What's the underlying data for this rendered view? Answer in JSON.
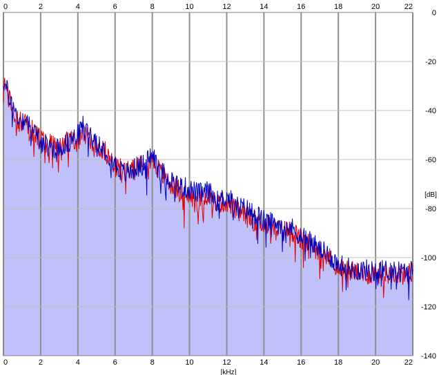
{
  "chart_data": {
    "type": "area",
    "title": "",
    "xlabel": "[kHz]",
    "ylabel": "[dB]",
    "xlim": [
      0,
      22
    ],
    "ylim": [
      -140,
      0
    ],
    "x_ticks": [
      0,
      2,
      4,
      6,
      8,
      10,
      12,
      14,
      16,
      18,
      20,
      22
    ],
    "y_ticks": [
      0,
      -20,
      -40,
      -60,
      -80,
      -100,
      -120,
      -140
    ],
    "x_tick_labels_top": [
      "0",
      "2",
      "4",
      "6",
      "8",
      "10",
      "12",
      "14",
      "16",
      "18",
      "20",
      "22"
    ],
    "x_tick_labels_bottom": [
      "0",
      "2",
      "4",
      "6",
      "8",
      "10",
      "12",
      "14",
      "16",
      "18",
      "20",
      "22"
    ],
    "y_tick_labels": [
      "0",
      "-20",
      "-40",
      "-60",
      "-80",
      "-100",
      "-120",
      "-140"
    ],
    "grid": true,
    "fill_color": "#c0c0fa",
    "series": [
      {
        "color": "#0000c0",
        "x": [
          0,
          0.25,
          0.5,
          0.75,
          1,
          1.25,
          1.5,
          1.75,
          2,
          2.5,
          3,
          3.5,
          4,
          4.25,
          4.5,
          5,
          5.5,
          6,
          6.5,
          7,
          7.5,
          8,
          8.5,
          9,
          9.5,
          10,
          10.5,
          11,
          11.5,
          12,
          12.5,
          13,
          13.5,
          14,
          14.5,
          15,
          15.5,
          16,
          16.5,
          17,
          17.5,
          18,
          18.5,
          19,
          19.5,
          20,
          20.5,
          21,
          21.5,
          22
        ],
        "values": [
          -28,
          -33,
          -38,
          -43,
          -44,
          -43,
          -47,
          -50,
          -53,
          -55,
          -55,
          -53,
          -50,
          -46,
          -48,
          -52,
          -56,
          -62,
          -66,
          -64,
          -62,
          -58,
          -65,
          -68,
          -71,
          -72,
          -74,
          -73,
          -77,
          -75,
          -79,
          -80,
          -82,
          -85,
          -86,
          -86,
          -88,
          -91,
          -93,
          -97,
          -99,
          -103,
          -104,
          -105,
          -105,
          -106,
          -105,
          -105,
          -106,
          -105
        ]
      },
      {
        "color": "#e00000",
        "x": [
          0,
          0.25,
          0.5,
          0.75,
          1,
          1.25,
          1.5,
          1.75,
          2,
          2.5,
          3,
          3.5,
          4,
          4.25,
          4.5,
          5,
          5.5,
          6,
          6.5,
          7,
          7.5,
          8,
          8.5,
          9,
          9.5,
          10,
          10.5,
          11,
          11.5,
          12,
          12.5,
          13,
          13.5,
          14,
          14.5,
          15,
          15.5,
          16,
          16.5,
          17,
          17.5,
          18,
          18.5,
          19,
          19.5,
          20,
          20.5,
          21,
          21.5,
          22
        ],
        "values": [
          -29,
          -34,
          -39,
          -44,
          -45,
          -45,
          -48,
          -50,
          -52,
          -54,
          -55,
          -52,
          -52,
          -49,
          -50,
          -54,
          -57,
          -63,
          -64,
          -62,
          -60,
          -60,
          -66,
          -70,
          -73,
          -75,
          -77,
          -74,
          -78,
          -77,
          -81,
          -83,
          -85,
          -86,
          -88,
          -89,
          -89,
          -93,
          -95,
          -97,
          -100,
          -104,
          -105,
          -106,
          -107,
          -106,
          -107,
          -106,
          -107,
          -106
        ]
      }
    ]
  }
}
